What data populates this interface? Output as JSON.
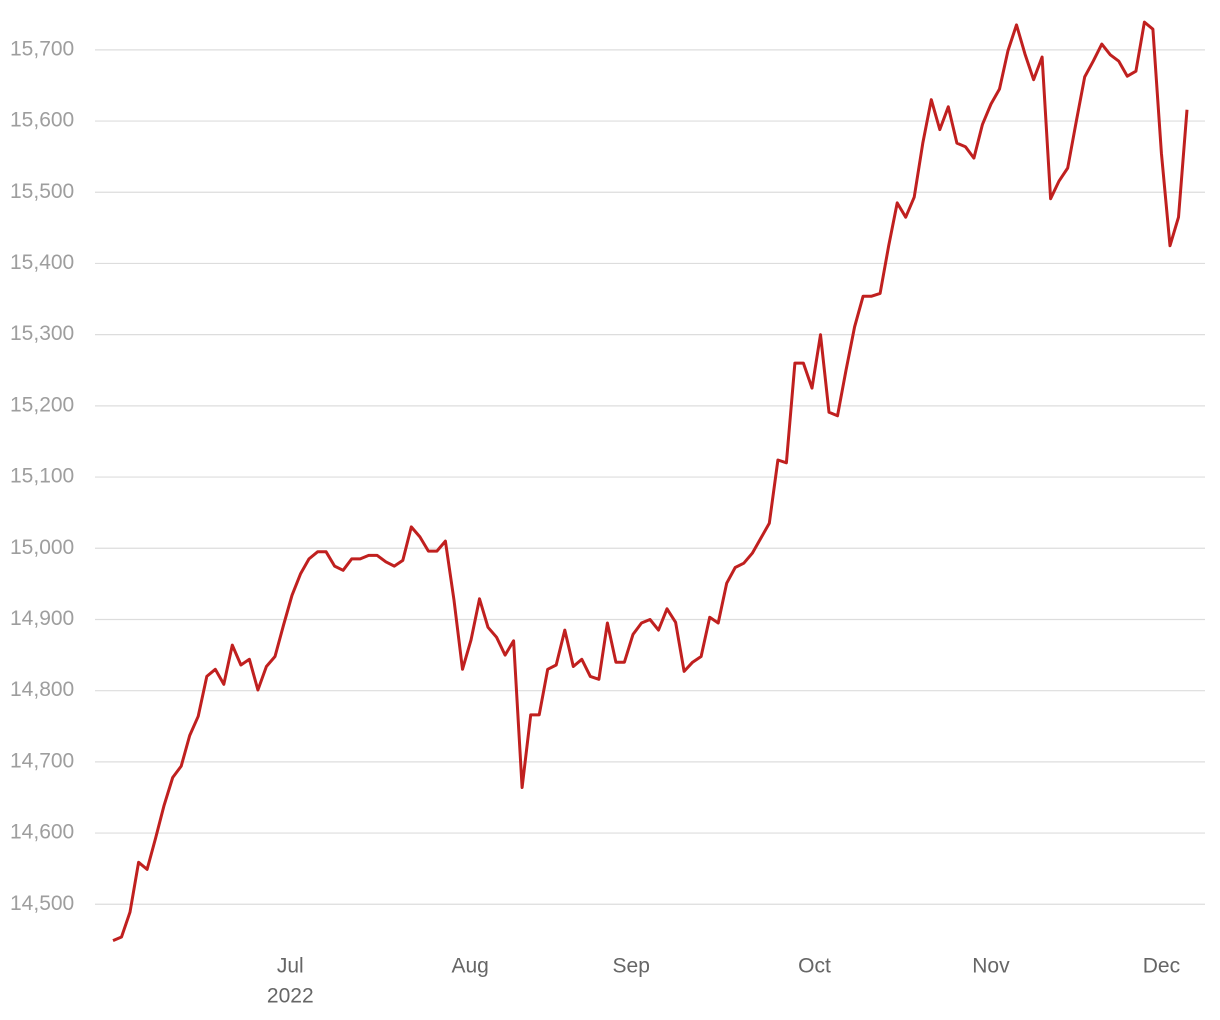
{
  "chart_data": {
    "type": "line",
    "series": [
      {
        "name": null,
        "color": "#c0201f",
        "values": [
          14449,
          14454,
          14489,
          14559,
          14549,
          14593,
          14639,
          14678,
          14694,
          14737,
          14764,
          14820,
          14830,
          14809,
          14864,
          14836,
          14844,
          14801,
          14834,
          14848,
          14892,
          14934,
          14964,
          14985,
          14995,
          14995,
          14975,
          14969,
          14985,
          14985,
          14990,
          14990,
          14981,
          14975,
          14983,
          15030,
          15016,
          14996,
          14996,
          15010,
          14927,
          14830,
          14871,
          14929,
          14889,
          14875,
          14850,
          14870,
          14664,
          14766,
          14766,
          14830,
          14836,
          14885,
          14834,
          14844,
          14820,
          14816,
          14895,
          14840,
          14840,
          14879,
          14895,
          14900,
          14885,
          14915,
          14896,
          14827,
          14840,
          14848,
          14903,
          14895,
          14951,
          14973,
          14979,
          14993,
          15014,
          15035,
          15124,
          15120,
          15260,
          15260,
          15225,
          15300,
          15191,
          15186,
          15250,
          15311,
          15354,
          15354,
          15358,
          15425,
          15485,
          15465,
          15493,
          15569,
          15630,
          15588,
          15620,
          15569,
          15564,
          15548,
          15595,
          15624,
          15645,
          15699,
          15735,
          15694,
          15658,
          15690,
          15491,
          15516,
          15534,
          15599,
          15662,
          15684,
          15708,
          15693,
          15684,
          15663,
          15670,
          15739,
          15729,
          15555,
          15425,
          15465,
          15616
        ]
      }
    ],
    "xlim": [
      0,
      126
    ],
    "xticks": [
      {
        "value": 20.8,
        "label": "Jul"
      },
      {
        "value": 41.9,
        "label": "Aug"
      },
      {
        "value": 60.8,
        "label": "Sep"
      },
      {
        "value": 82.3,
        "label": "Oct"
      },
      {
        "value": 103,
        "label": "Nov"
      },
      {
        "value": 123,
        "label": "Dec"
      }
    ],
    "x_year_label": "2022",
    "ylim": [
      14440,
      15770
    ],
    "yticks": [
      {
        "value": 14500,
        "label": "14,500"
      },
      {
        "value": 14600,
        "label": "14,600"
      },
      {
        "value": 14700,
        "label": "14,700"
      },
      {
        "value": 14800,
        "label": "14,800"
      },
      {
        "value": 14900,
        "label": "14,900"
      },
      {
        "value": 15000,
        "label": "15,000"
      },
      {
        "value": 15100,
        "label": "15,100"
      },
      {
        "value": 15200,
        "label": "15,200"
      },
      {
        "value": 15300,
        "label": "15,300"
      },
      {
        "value": 15400,
        "label": "15,400"
      },
      {
        "value": 15500,
        "label": "15,500"
      },
      {
        "value": 15600,
        "label": "15,600"
      },
      {
        "value": 15700,
        "label": "15,700"
      }
    ],
    "grid": true
  }
}
